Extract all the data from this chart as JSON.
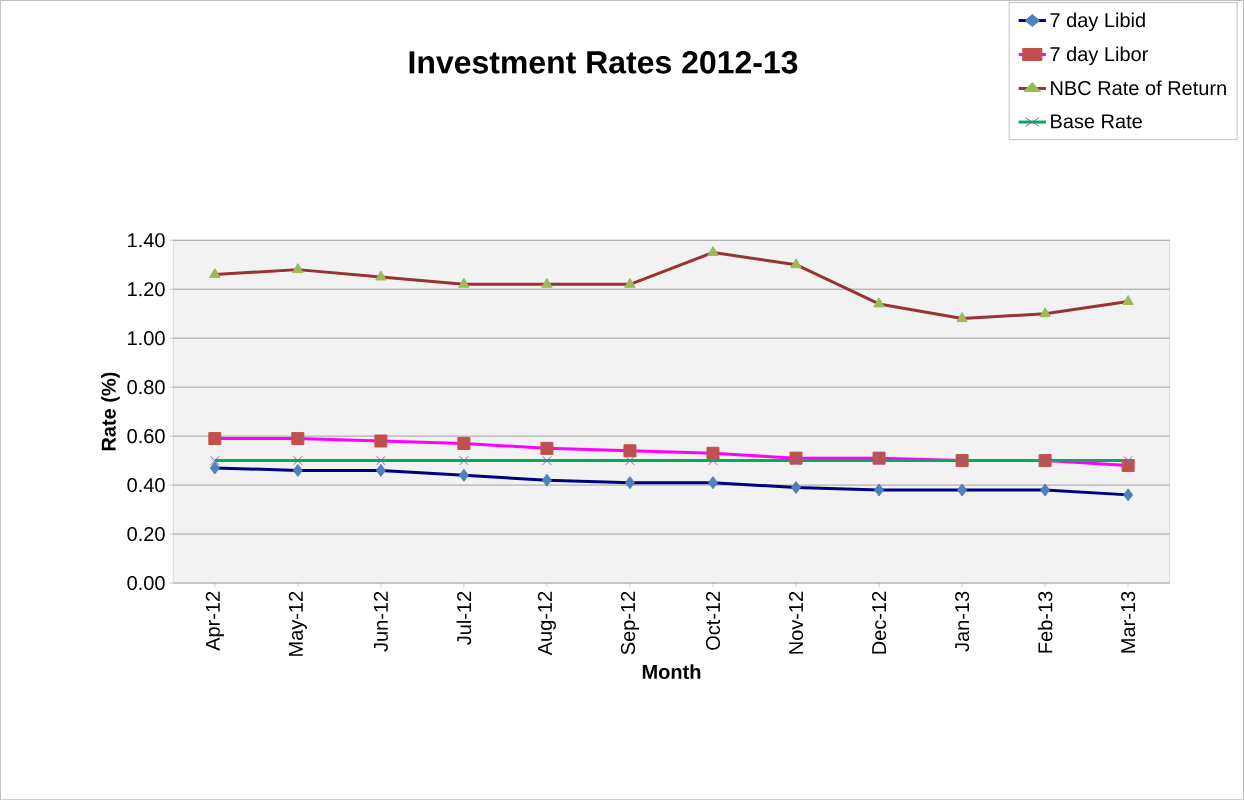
{
  "chart_data": {
    "type": "line",
    "title": "Investment Rates 2012-13",
    "xlabel": "Month",
    "ylabel": "Rate (%)",
    "categories": [
      "Apr-12",
      "May-12",
      "Jun-12",
      "Jul-12",
      "Aug-12",
      "Sep-12",
      "Oct-12",
      "Nov-12",
      "Dec-12",
      "Jan-13",
      "Feb-13",
      "Mar-13"
    ],
    "series": [
      {
        "name": "7 day Libid",
        "color": "#000080",
        "marker": "diamond",
        "values": [
          0.47,
          0.46,
          0.46,
          0.44,
          0.42,
          0.41,
          0.41,
          0.39,
          0.38,
          0.38,
          0.38,
          0.36
        ]
      },
      {
        "name": "7 day Libor",
        "color": "#ff00ff",
        "marker": "square",
        "values": [
          0.59,
          0.59,
          0.58,
          0.57,
          0.55,
          0.54,
          0.53,
          0.51,
          0.51,
          0.5,
          0.5,
          0.48
        ]
      },
      {
        "name": "NBC Rate of Return",
        "color": "#993333",
        "marker": "triangle",
        "values": [
          1.26,
          1.28,
          1.25,
          1.22,
          1.22,
          1.22,
          1.35,
          1.3,
          1.14,
          1.08,
          1.1,
          1.15
        ]
      },
      {
        "name": "Base Rate",
        "color": "#00b050",
        "marker": "cross",
        "values": [
          0.5,
          0.5,
          0.5,
          0.5,
          0.5,
          0.5,
          0.5,
          0.5,
          0.5,
          0.5,
          0.5,
          0.5
        ]
      }
    ],
    "ylim": [
      0,
      1.4
    ],
    "yticks": [
      {
        "value": 0,
        "label": "0.00"
      },
      {
        "value": 0.2,
        "label": "0.20"
      },
      {
        "value": 0.4,
        "label": "0.40"
      },
      {
        "value": 0.6,
        "label": "0.60"
      },
      {
        "value": 0.8,
        "label": "0.80"
      },
      {
        "value": 1.0,
        "label": "1.00"
      },
      {
        "value": 1.2,
        "label": "1.20"
      },
      {
        "value": 1.4,
        "label": "1.40"
      }
    ],
    "grid": "y",
    "legend": "top right",
    "line_style": "solid"
  }
}
